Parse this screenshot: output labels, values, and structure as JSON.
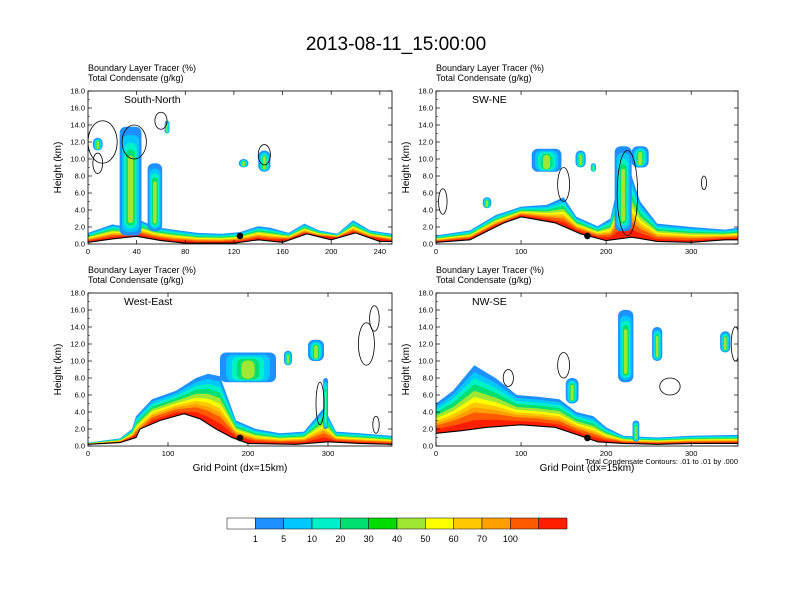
{
  "figure": {
    "title": "2013-08-11_15:00:00",
    "footnote": "Total Condensate Contours: .01 to .01 by .000"
  },
  "colors": {
    "contour": "#000000",
    "palette": [
      "#ffffff",
      "#1e90ff",
      "#00c8ff",
      "#00f0c8",
      "#00e070",
      "#00dc00",
      "#a0e632",
      "#ffff00",
      "#ffc800",
      "#ffa000",
      "#ff5a00",
      "#ff1e00"
    ]
  },
  "colorbar": {
    "labels": [
      "1",
      "5",
      "10",
      "20",
      "30",
      "40",
      "50",
      "60",
      "70",
      "100"
    ]
  },
  "chart_data": [
    {
      "type": "heatmap",
      "panel_label": "South-North",
      "left_title_1": "Boundary Layer Tracer   (%)",
      "left_title_2": "Total Condensate   (g/kg)",
      "ylabel": "Height (km)",
      "xlabel": "",
      "xlim": [
        0,
        250
      ],
      "ylim": [
        0,
        18
      ],
      "xticks": [
        0,
        40,
        80,
        120,
        160,
        200,
        240
      ],
      "yticks": [
        "0.0",
        "2.0",
        "4.0",
        "6.0",
        "8.0",
        "10.0",
        "12.0",
        "14.0",
        "16.0",
        "18.0"
      ],
      "marker_x": 125,
      "terrain": [
        [
          0,
          0.2
        ],
        [
          20,
          0.6
        ],
        [
          40,
          0.9
        ],
        [
          60,
          0.4
        ],
        [
          80,
          0.1
        ],
        [
          120,
          0.1
        ],
        [
          140,
          0.5
        ],
        [
          160,
          0.2
        ],
        [
          180,
          1.2
        ],
        [
          200,
          0.5
        ],
        [
          220,
          1.3
        ],
        [
          240,
          0.3
        ],
        [
          250,
          0.3
        ]
      ],
      "bl_top": [
        [
          0,
          1.3
        ],
        [
          20,
          2.3
        ],
        [
          32,
          2.0
        ],
        [
          40,
          3.0
        ],
        [
          55,
          2.0
        ],
        [
          70,
          1.7
        ],
        [
          90,
          1.3
        ],
        [
          110,
          1.2
        ],
        [
          125,
          1.4
        ],
        [
          140,
          2.1
        ],
        [
          150,
          1.9
        ],
        [
          165,
          1.3
        ],
        [
          178,
          2.4
        ],
        [
          190,
          1.6
        ],
        [
          205,
          1.2
        ],
        [
          218,
          2.8
        ],
        [
          232,
          1.6
        ],
        [
          250,
          1.2
        ]
      ],
      "plumes": [
        {
          "x": 35,
          "base": 1.0,
          "top": 13.8,
          "w": 18
        },
        {
          "x": 55,
          "base": 1.5,
          "top": 9.5,
          "w": 12
        },
        {
          "x": 8,
          "base": 11.0,
          "top": 12.5,
          "w": 8
        },
        {
          "x": 145,
          "base": 8.5,
          "top": 11.0,
          "w": 10
        },
        {
          "x": 128,
          "base": 9.0,
          "top": 10.0,
          "w": 8
        },
        {
          "x": 65,
          "base": 13.0,
          "top": 14.5,
          "w": 4
        }
      ],
      "contours": [
        {
          "x": 12,
          "y": 12.0,
          "rx": 12,
          "ry": 2.5
        },
        {
          "x": 38,
          "y": 12.0,
          "rx": 10,
          "ry": 2.0
        },
        {
          "x": 145,
          "y": 10.5,
          "rx": 5,
          "ry": 1.2
        },
        {
          "x": 60,
          "y": 14.5,
          "rx": 5,
          "ry": 1.0
        },
        {
          "x": 8,
          "y": 9.5,
          "rx": 4,
          "ry": 1.2
        }
      ]
    },
    {
      "type": "heatmap",
      "panel_label": "SW-NE",
      "left_title_1": "Boundary Layer Tracer   (%)",
      "left_title_2": "Total Condensate   (g/kg)",
      "ylabel": "Height (km)",
      "xlabel": "",
      "xlim": [
        0,
        355
      ],
      "ylim": [
        0,
        18
      ],
      "xticks": [
        0,
        100,
        200,
        300
      ],
      "yticks": [
        "0.0",
        "2.0",
        "4.0",
        "6.0",
        "8.0",
        "10.0",
        "12.0",
        "14.0",
        "16.0",
        "18.0"
      ],
      "marker_x": 178,
      "terrain": [
        [
          0,
          0.2
        ],
        [
          40,
          0.5
        ],
        [
          60,
          1.5
        ],
        [
          80,
          2.5
        ],
        [
          100,
          3.2
        ],
        [
          140,
          2.5
        ],
        [
          170,
          1.2
        ],
        [
          200,
          0.4
        ],
        [
          230,
          0.8
        ],
        [
          260,
          0.3
        ],
        [
          300,
          0.2
        ],
        [
          340,
          0.5
        ],
        [
          355,
          0.5
        ]
      ],
      "bl_top": [
        [
          0,
          1.0
        ],
        [
          40,
          1.6
        ],
        [
          70,
          3.4
        ],
        [
          100,
          4.4
        ],
        [
          130,
          4.6
        ],
        [
          150,
          5.5
        ],
        [
          165,
          3.2
        ],
        [
          190,
          2.1
        ],
        [
          205,
          3.0
        ],
        [
          215,
          7.5
        ],
        [
          225,
          9.5
        ],
        [
          240,
          5.0
        ],
        [
          260,
          2.4
        ],
        [
          300,
          2.0
        ],
        [
          340,
          1.7
        ],
        [
          355,
          1.9
        ]
      ],
      "plumes": [
        {
          "x": 220,
          "base": 1.5,
          "top": 11.5,
          "w": 20
        },
        {
          "x": 130,
          "base": 8.5,
          "top": 11.2,
          "w": 35
        },
        {
          "x": 170,
          "base": 9.0,
          "top": 11.0,
          "w": 12
        },
        {
          "x": 240,
          "base": 9.0,
          "top": 11.5,
          "w": 20
        },
        {
          "x": 185,
          "base": 8.5,
          "top": 9.5,
          "w": 6
        },
        {
          "x": 60,
          "base": 4.2,
          "top": 5.5,
          "w": 10
        }
      ],
      "contours": [
        {
          "x": 225,
          "y": 6.0,
          "rx": 12,
          "ry": 5.0
        },
        {
          "x": 150,
          "y": 7.0,
          "rx": 7,
          "ry": 2.0
        },
        {
          "x": 8,
          "y": 5.0,
          "rx": 5,
          "ry": 1.5
        },
        {
          "x": 315,
          "y": 7.2,
          "rx": 3,
          "ry": 0.8
        }
      ]
    },
    {
      "type": "heatmap",
      "panel_label": "West-East",
      "left_title_1": "Boundary Layer Tracer   (%)",
      "left_title_2": "Total Condensate   (g/kg)",
      "ylabel": "Height (km)",
      "xlabel": "Grid Point (dx=15km)",
      "xlim": [
        0,
        380
      ],
      "ylim": [
        0,
        18
      ],
      "xticks": [
        0,
        100,
        200,
        300
      ],
      "yticks": [
        "0.0",
        "2.0",
        "4.0",
        "6.0",
        "8.0",
        "10.0",
        "12.0",
        "14.0",
        "16.0",
        "18.0"
      ],
      "marker_x": 190,
      "terrain": [
        [
          0,
          0.2
        ],
        [
          40,
          0.4
        ],
        [
          60,
          1.0
        ],
        [
          65,
          2.0
        ],
        [
          90,
          3.0
        ],
        [
          120,
          3.8
        ],
        [
          140,
          3.2
        ],
        [
          160,
          2.0
        ],
        [
          180,
          1.0
        ],
        [
          200,
          0.3
        ],
        [
          260,
          0.2
        ],
        [
          300,
          0.5
        ],
        [
          340,
          0.3
        ],
        [
          380,
          0.2
        ]
      ],
      "bl_top": [
        [
          0,
          0.4
        ],
        [
          40,
          0.9
        ],
        [
          55,
          2.0
        ],
        [
          60,
          3.5
        ],
        [
          80,
          5.5
        ],
        [
          110,
          6.5
        ],
        [
          135,
          8.0
        ],
        [
          150,
          8.5
        ],
        [
          165,
          8.2
        ],
        [
          185,
          3.0
        ],
        [
          210,
          2.0
        ],
        [
          240,
          1.5
        ],
        [
          270,
          1.7
        ],
        [
          295,
          4.5
        ],
        [
          310,
          1.7
        ],
        [
          340,
          1.5
        ],
        [
          380,
          1.2
        ]
      ],
      "plumes": [
        {
          "x": 200,
          "base": 7.5,
          "top": 11.0,
          "w": 70
        },
        {
          "x": 250,
          "base": 9.5,
          "top": 11.2,
          "w": 10
        },
        {
          "x": 285,
          "base": 10.0,
          "top": 12.5,
          "w": 20
        },
        {
          "x": 297,
          "base": 2.0,
          "top": 8.0,
          "w": 6
        }
      ],
      "contours": [
        {
          "x": 348,
          "y": 12.0,
          "rx": 10,
          "ry": 2.5
        },
        {
          "x": 358,
          "y": 15.0,
          "rx": 6,
          "ry": 1.5
        },
        {
          "x": 290,
          "y": 5.0,
          "rx": 5,
          "ry": 2.5
        },
        {
          "x": 360,
          "y": 2.5,
          "rx": 4,
          "ry": 1.0
        }
      ]
    },
    {
      "type": "heatmap",
      "panel_label": "NW-SE",
      "left_title_1": "Boundary Layer Tracer   (%)",
      "left_title_2": "Total Condensate   (g/kg)",
      "ylabel": "Height (km)",
      "xlabel": "Grid Point (dx=15km)",
      "xlim": [
        0,
        355
      ],
      "ylim": [
        0,
        18
      ],
      "xticks": [
        0,
        100,
        200,
        300
      ],
      "yticks": [
        "0.0",
        "2.0",
        "4.0",
        "6.0",
        "8.0",
        "10.0",
        "12.0",
        "14.0",
        "16.0",
        "18.0"
      ],
      "marker_x": 178,
      "terrain": [
        [
          0,
          1.5
        ],
        [
          30,
          1.8
        ],
        [
          60,
          2.2
        ],
        [
          100,
          2.5
        ],
        [
          140,
          2.2
        ],
        [
          170,
          1.2
        ],
        [
          190,
          0.5
        ],
        [
          220,
          0.3
        ],
        [
          260,
          0.2
        ],
        [
          300,
          0.3
        ],
        [
          355,
          0.3
        ]
      ],
      "bl_top": [
        [
          0,
          5.0
        ],
        [
          20,
          6.5
        ],
        [
          45,
          9.5
        ],
        [
          70,
          8.0
        ],
        [
          95,
          6.0
        ],
        [
          120,
          5.8
        ],
        [
          145,
          5.5
        ],
        [
          165,
          4.0
        ],
        [
          185,
          3.5
        ],
        [
          200,
          2.2
        ],
        [
          220,
          1.2
        ],
        [
          260,
          1.0
        ],
        [
          300,
          1.2
        ],
        [
          355,
          1.3
        ]
      ],
      "plumes": [
        {
          "x": 223,
          "base": 7.5,
          "top": 16.0,
          "w": 18
        },
        {
          "x": 260,
          "base": 10.0,
          "top": 14.0,
          "w": 12
        },
        {
          "x": 160,
          "base": 5.0,
          "top": 8.0,
          "w": 15
        },
        {
          "x": 340,
          "base": 11.0,
          "top": 13.5,
          "w": 12
        },
        {
          "x": 235,
          "base": 0.5,
          "top": 3.0,
          "w": 8
        }
      ],
      "contours": [
        {
          "x": 352,
          "y": 12.0,
          "rx": 5,
          "ry": 2.0
        },
        {
          "x": 150,
          "y": 9.5,
          "rx": 7,
          "ry": 1.5
        },
        {
          "x": 275,
          "y": 7.0,
          "rx": 12,
          "ry": 1.0
        },
        {
          "x": 85,
          "y": 8.0,
          "rx": 6,
          "ry": 1.0
        }
      ]
    }
  ]
}
